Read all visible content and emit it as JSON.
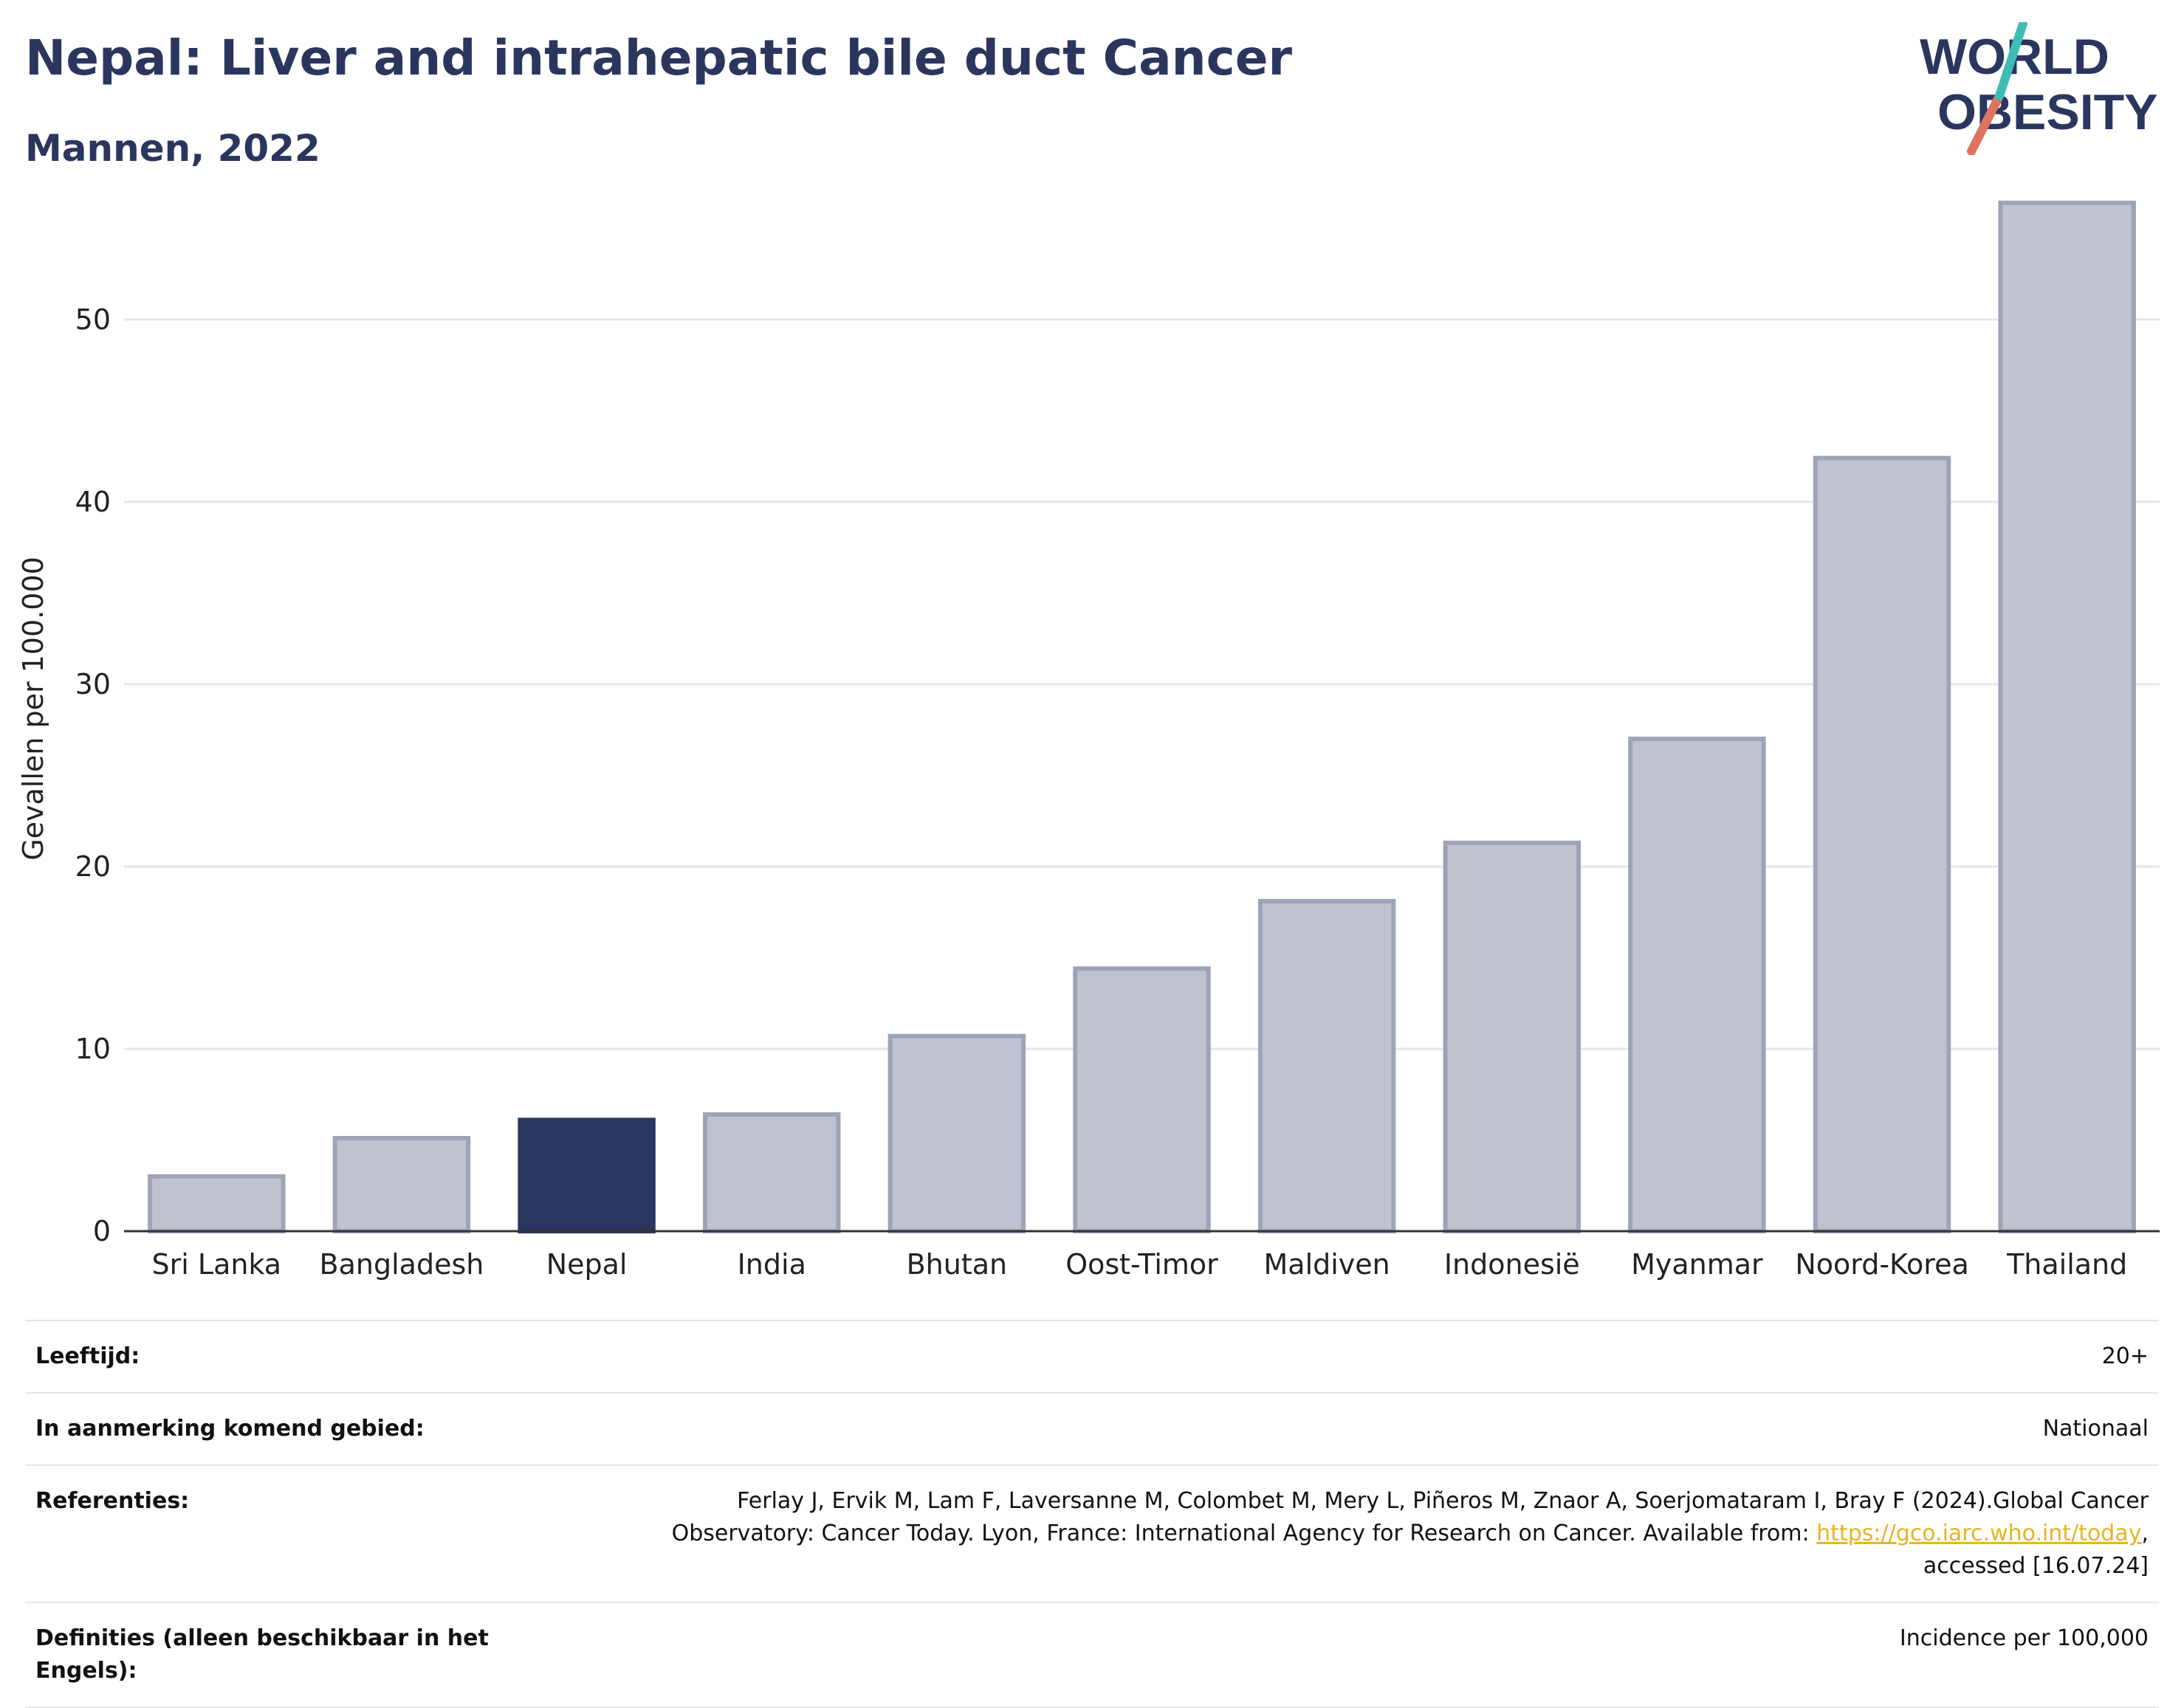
{
  "header": {
    "title": "Nepal: Liver and intrahepatic bile duct Cancer",
    "subtitle": "Mannen, 2022"
  },
  "logo": {
    "line1": "WORLD",
    "line2": "OBESITY"
  },
  "colors": {
    "highlight": "#2b365f",
    "bar": "#bfc3d0",
    "bar_border": "#9ea4b8",
    "title": "#2b365f",
    "link": "#e8b520"
  },
  "chart_data": {
    "type": "bar",
    "ylabel": "Gevallen per 100.000",
    "ylim": [
      0,
      57
    ],
    "yticks": [
      0,
      10,
      20,
      30,
      40,
      50
    ],
    "categories": [
      "Sri Lanka",
      "Bangladesh",
      "Nepal",
      "India",
      "Bhutan",
      "Oost-Timor",
      "Maldiven",
      "Indonesië",
      "Myanmar",
      "Noord-Korea",
      "Thailand"
    ],
    "values": [
      3.0,
      5.1,
      6.1,
      6.4,
      10.7,
      14.4,
      18.1,
      21.3,
      27.0,
      42.4,
      56.4
    ],
    "highlight": "Nepal",
    "grid": true
  },
  "meta": {
    "age_label": "Leeftijd:",
    "age_value": "20+",
    "area_label": "In aanmerking komend gebied:",
    "area_value": "Nationaal",
    "ref_label": "Referenties:",
    "ref_text1": "Ferlay J, Ervik M, Lam F, Laversanne M, Colombet M, Mery L, Piñeros M, Znaor A, Soerjomataram I, Bray F (2024).Global Cancer Observatory: Cancer Today. Lyon, France: International Agency for Research on Cancer. Available from: ",
    "ref_link": "https://gco.iarc.who.int/today",
    "ref_text2": ", accessed [16.07.24]",
    "def_label": "Definities (alleen beschikbaar in het Engels):",
    "def_value": "Incidence per 100,000"
  }
}
